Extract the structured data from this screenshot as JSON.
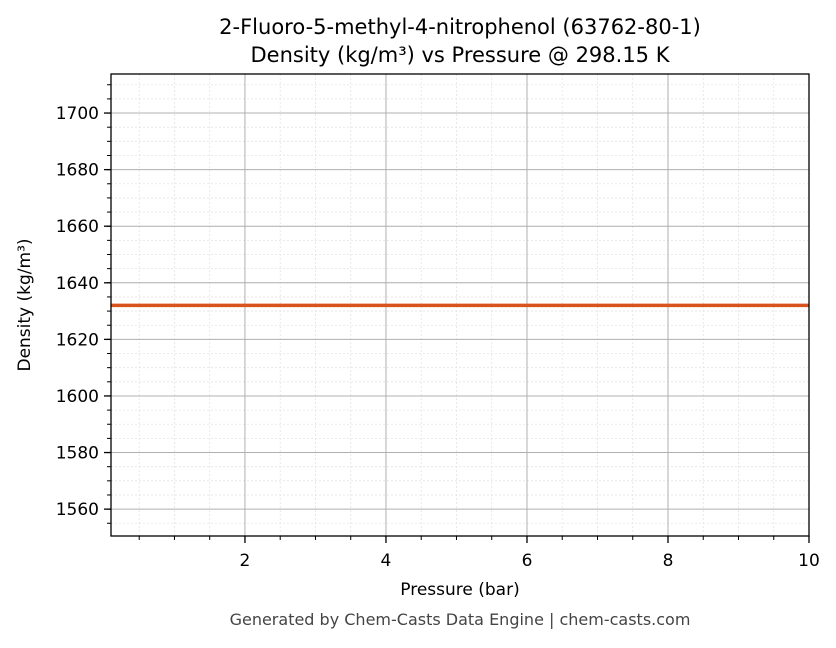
{
  "chart_data": {
    "type": "line",
    "title": "2-Fluoro-5-methyl-4-nitrophenol (63762-80-1)",
    "subtitle": "Density (kg/m³) vs Pressure @ 298.15 K",
    "xlabel": "Pressure (bar)",
    "ylabel": "Density (kg/m³)",
    "xlim": [
      0.1,
      10
    ],
    "ylim": [
      1550.5,
      1713.8
    ],
    "xticks": [
      2,
      4,
      6,
      8,
      10
    ],
    "yticks": [
      1560,
      1580,
      1600,
      1620,
      1640,
      1660,
      1680,
      1700
    ],
    "x_minor_step": 0.5,
    "y_minor_step": 5,
    "grid": true,
    "series": [
      {
        "x": [
          0.1,
          10
        ],
        "y": [
          1632,
          1632
        ],
        "color": "#d9531e"
      }
    ]
  },
  "footer": "Generated by Chem-Casts Data Engine | chem-casts.com"
}
